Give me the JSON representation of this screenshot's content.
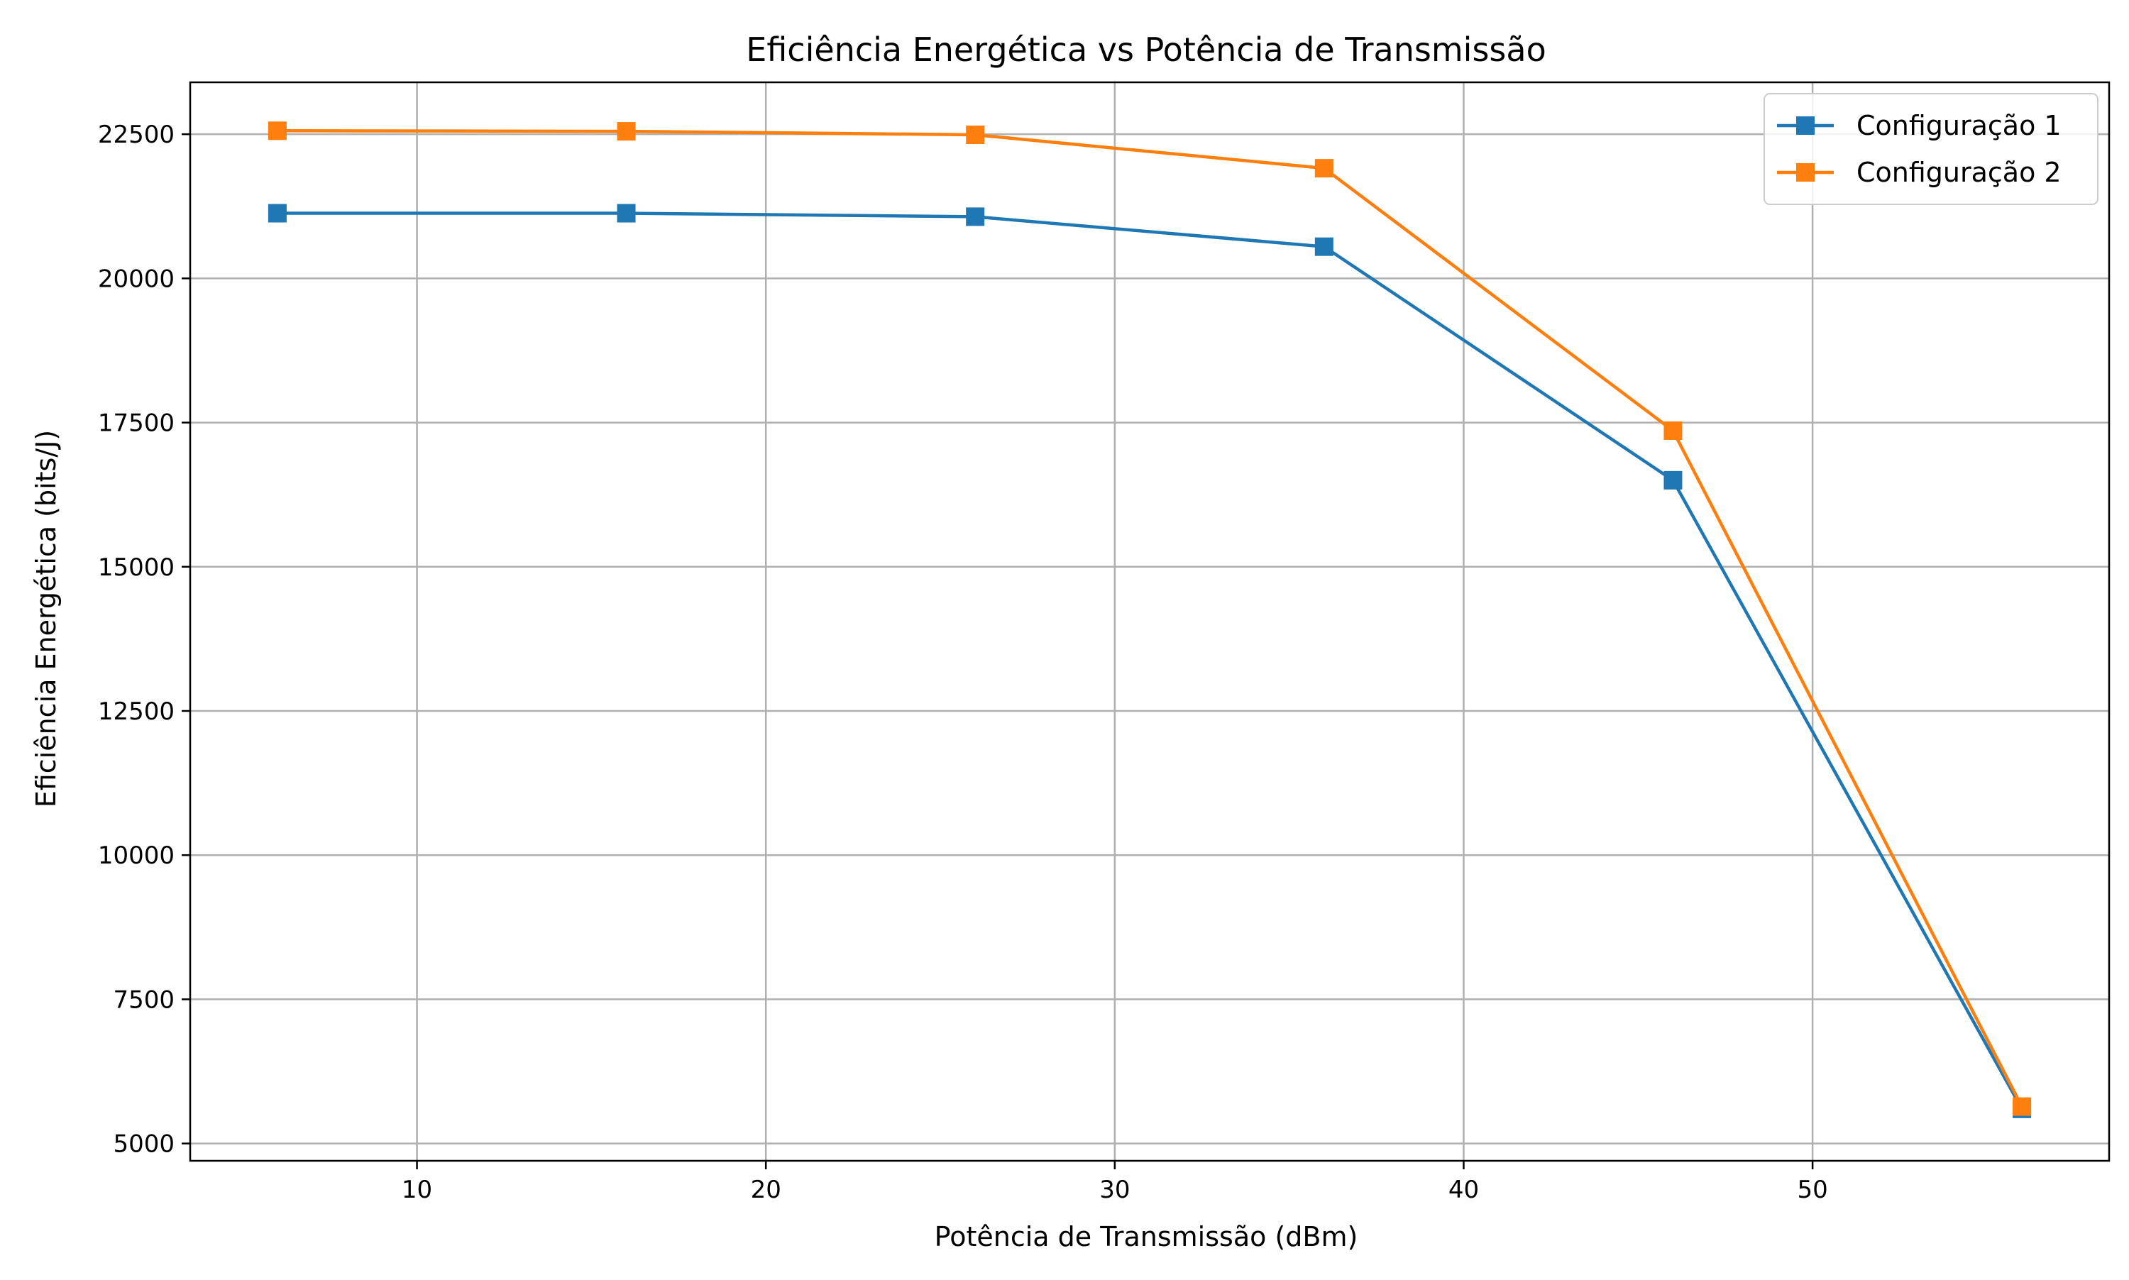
{
  "chart_data": {
    "type": "line",
    "title": "Eficiência Energética vs Potência de Transmissão",
    "xlabel": "Potência de Transmissão (dBm)",
    "ylabel": "Eficiência Energética (bits/J)",
    "x": [
      6,
      16,
      26,
      36,
      46,
      56
    ],
    "xlim": [
      3.5,
      58.5
    ],
    "ylim": [
      4700,
      23400
    ],
    "xticks": [
      10,
      20,
      30,
      40,
      50
    ],
    "yticks": [
      5000,
      7500,
      10000,
      12500,
      15000,
      17500,
      20000,
      22500
    ],
    "grid": true,
    "legend_position": "top-right",
    "marker": "square",
    "series": [
      {
        "name": "Configuração 1",
        "color": "#1f77b4",
        "values": [
          21130,
          21130,
          21070,
          20550,
          16500,
          5600
        ]
      },
      {
        "name": "Configuração 2",
        "color": "#ff7f0e",
        "values": [
          22560,
          22550,
          22490,
          21910,
          17360,
          5640
        ]
      }
    ]
  }
}
